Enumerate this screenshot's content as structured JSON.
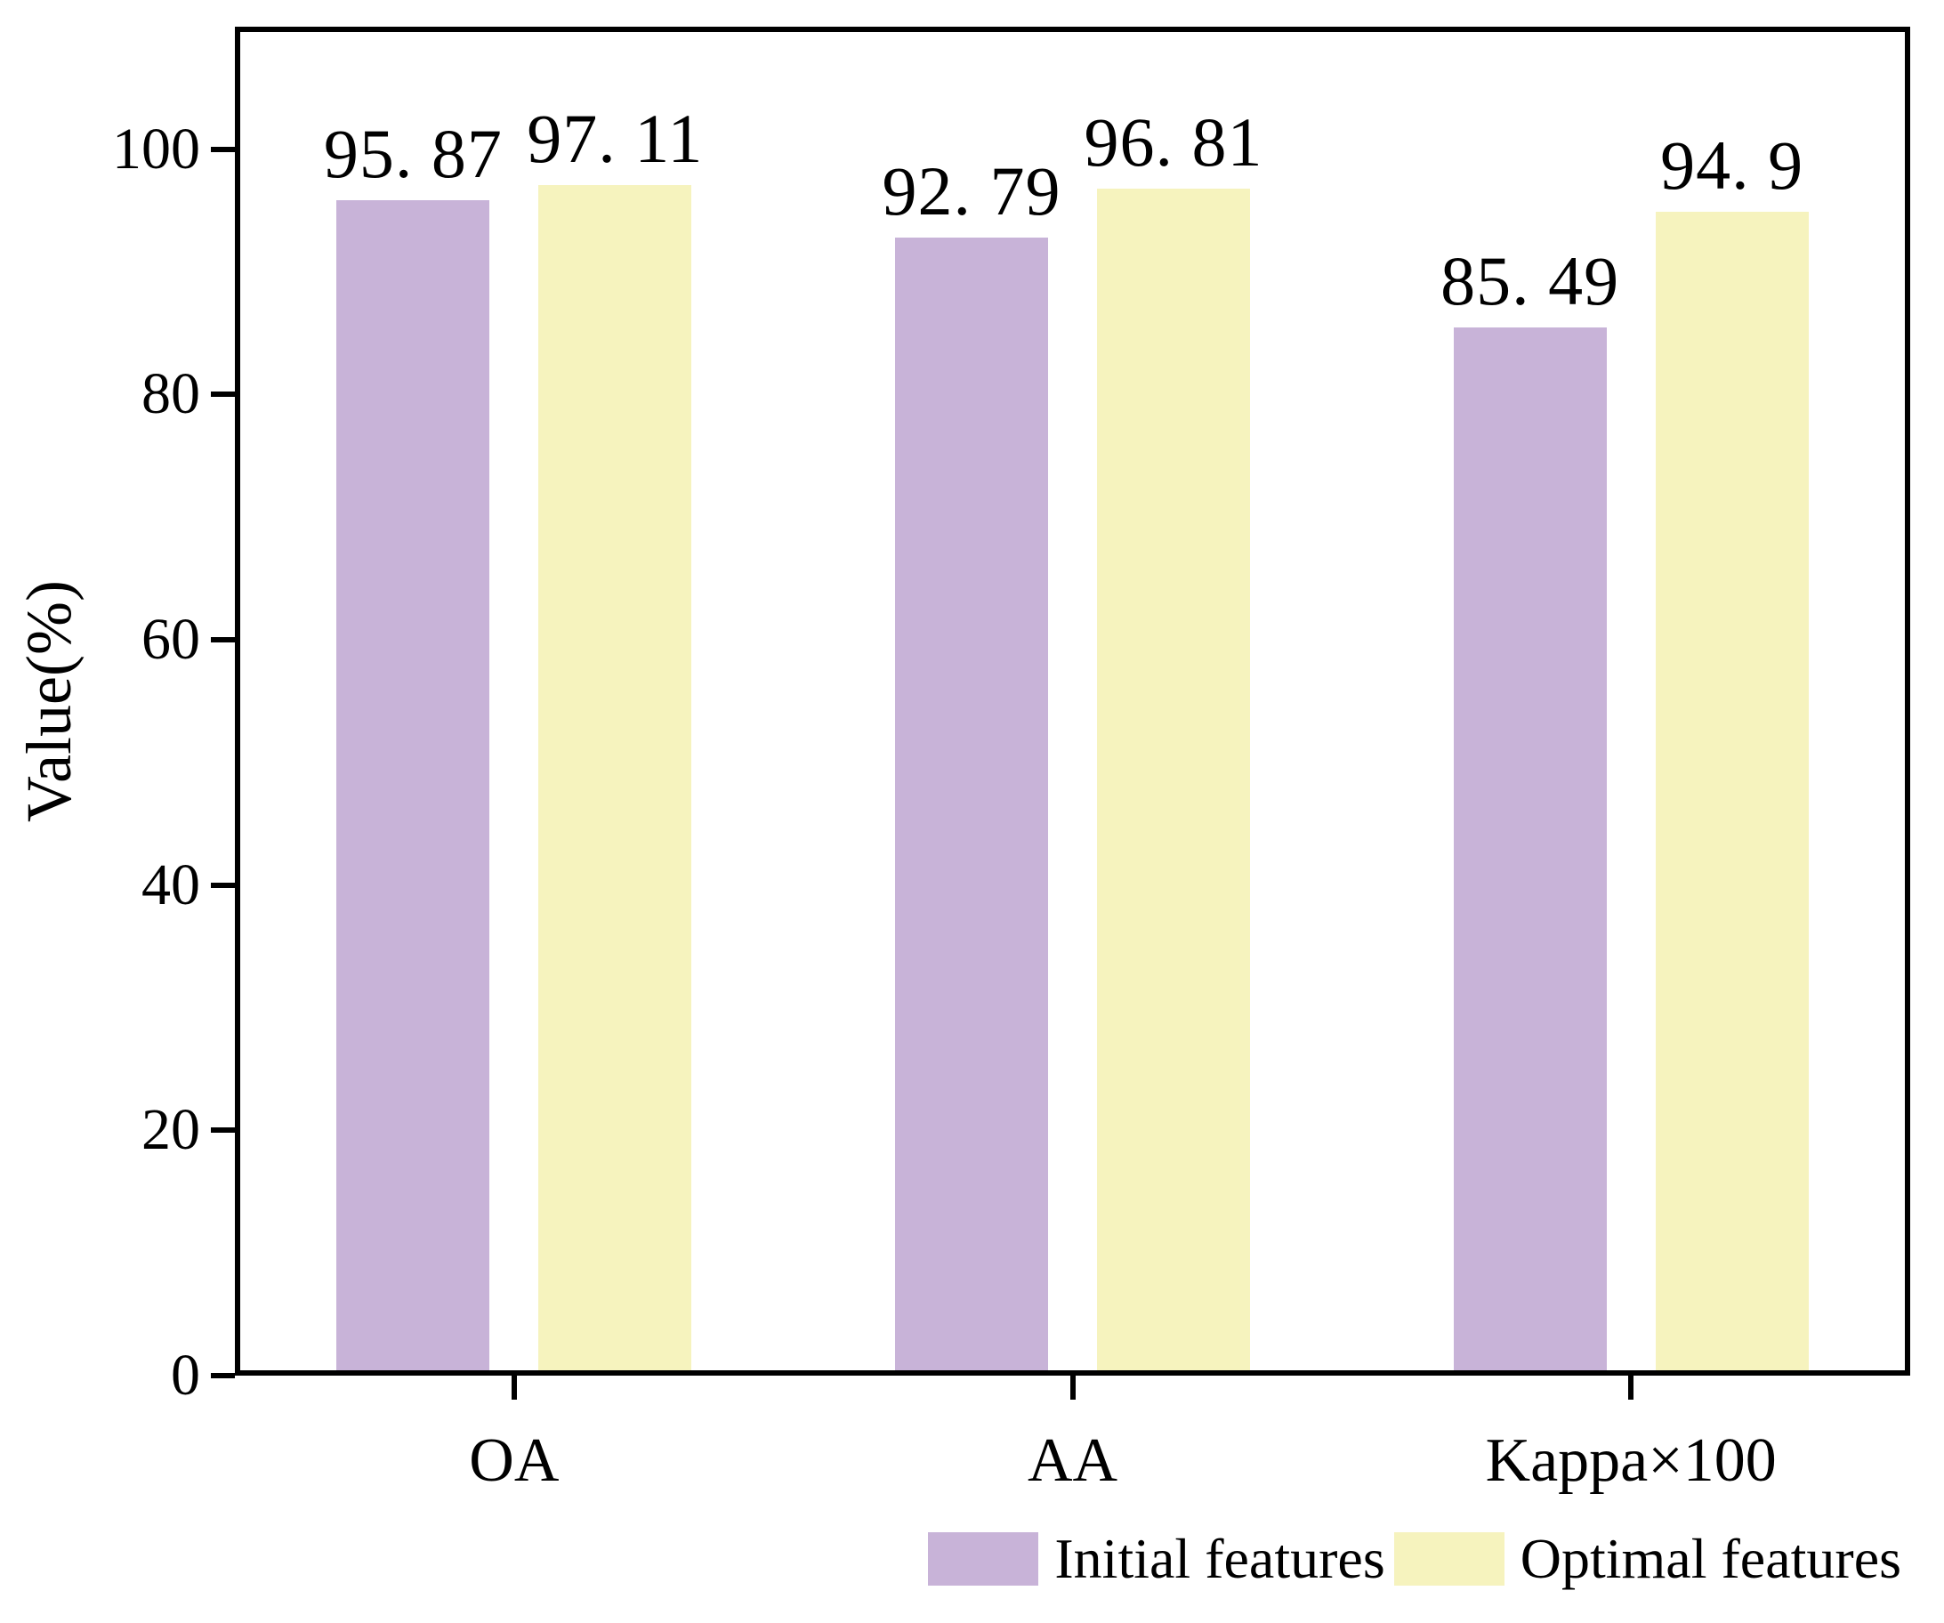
{
  "chart_data": {
    "type": "bar",
    "title": "",
    "categories": [
      "OA",
      "AA",
      "Kappa×100"
    ],
    "series": [
      {
        "name": "Initial features",
        "color": "#C8B3D8",
        "values": [
          95.87,
          92.79,
          85.49
        ],
        "labels": [
          "95. 87",
          "92. 79",
          "85. 49"
        ]
      },
      {
        "name": "Optimal features",
        "color": "#F6F3BE",
        "values": [
          97.11,
          96.81,
          94.9
        ],
        "labels": [
          "97. 11",
          "96. 81",
          "94. 9"
        ]
      }
    ],
    "xlabel": "",
    "ylabel": "Value(%)",
    "ylim": [
      0,
      110
    ],
    "yticks": [
      0,
      20,
      40,
      60,
      80,
      100
    ],
    "grid": false,
    "bar_value_labels": true,
    "legend_position": "bottom-right",
    "axis_color": "#000000",
    "background_color": "#ffffff"
  }
}
